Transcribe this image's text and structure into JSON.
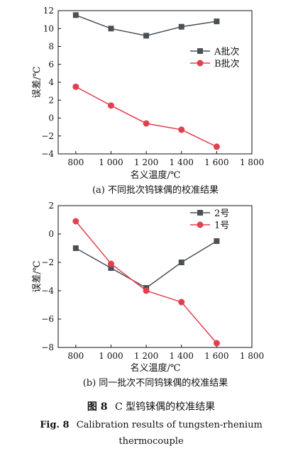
{
  "colors": {
    "series_a": "#4a5056",
    "series_b": "#e2404f"
  },
  "chart_data": [
    {
      "type": "line",
      "caption": "(a) 不同批次钨铼偶的校准结果",
      "xlabel": "名义温度/℃",
      "ylabel": "误差/℃",
      "xlim": [
        700,
        1800
      ],
      "ylim": [
        -4,
        12
      ],
      "xticks": [
        800,
        1000,
        1200,
        1400,
        1600,
        1800
      ],
      "xtick_labels": [
        "800",
        "1 000",
        "1 200",
        "1 400",
        "1 600",
        "1 800"
      ],
      "yticks": [
        -4,
        -2,
        0,
        2,
        4,
        6,
        8,
        10,
        12
      ],
      "ytick_labels": [
        "−4",
        "−2",
        "0",
        "2",
        "4",
        "6",
        "8",
        "10",
        "12"
      ],
      "legend_position": "right",
      "series": [
        {
          "name": "A批次",
          "marker": "square",
          "color": "#4a5056",
          "x": [
            800,
            1000,
            1200,
            1400,
            1600
          ],
          "y": [
            11.5,
            10.0,
            9.2,
            10.2,
            10.8
          ]
        },
        {
          "name": "B批次",
          "marker": "circle",
          "color": "#e2404f",
          "x": [
            800,
            1000,
            1200,
            1400,
            1600
          ],
          "y": [
            3.5,
            1.4,
            -0.6,
            -1.3,
            -3.2
          ]
        }
      ]
    },
    {
      "type": "line",
      "caption": "(b) 同一批次不同钨铼偶的校准结果",
      "xlabel": "名义温度/℃",
      "ylabel": "误差/℃",
      "xlim": [
        700,
        1800
      ],
      "ylim": [
        -8,
        2
      ],
      "xticks": [
        800,
        1000,
        1200,
        1400,
        1600,
        1800
      ],
      "xtick_labels": [
        "800",
        "1 000",
        "1 200",
        "1 400",
        "1 600",
        "1 800"
      ],
      "yticks": [
        -8,
        -6,
        -4,
        -2,
        0,
        2
      ],
      "ytick_labels": [
        "−8",
        "−6",
        "−4",
        "−2",
        "0",
        "2"
      ],
      "legend_position": "top-right",
      "series": [
        {
          "name": "2号",
          "marker": "square",
          "color": "#4a5056",
          "x": [
            800,
            1000,
            1200,
            1400,
            1600
          ],
          "y": [
            -1.0,
            -2.4,
            -3.8,
            -2.0,
            -0.5
          ]
        },
        {
          "name": "1号",
          "marker": "circle",
          "color": "#e2404f",
          "x": [
            800,
            1000,
            1200,
            1400,
            1600
          ],
          "y": [
            0.9,
            -2.1,
            -4.0,
            -4.8,
            -7.7
          ]
        }
      ]
    }
  ],
  "figure_caption": {
    "cn_label": "图 8",
    "cn_text": "C 型钨铼偶的校准结果",
    "en_label": "Fig. 8",
    "en_text": "Calibration results of tungsten-rhenium",
    "en_text2": "thermocouple"
  }
}
